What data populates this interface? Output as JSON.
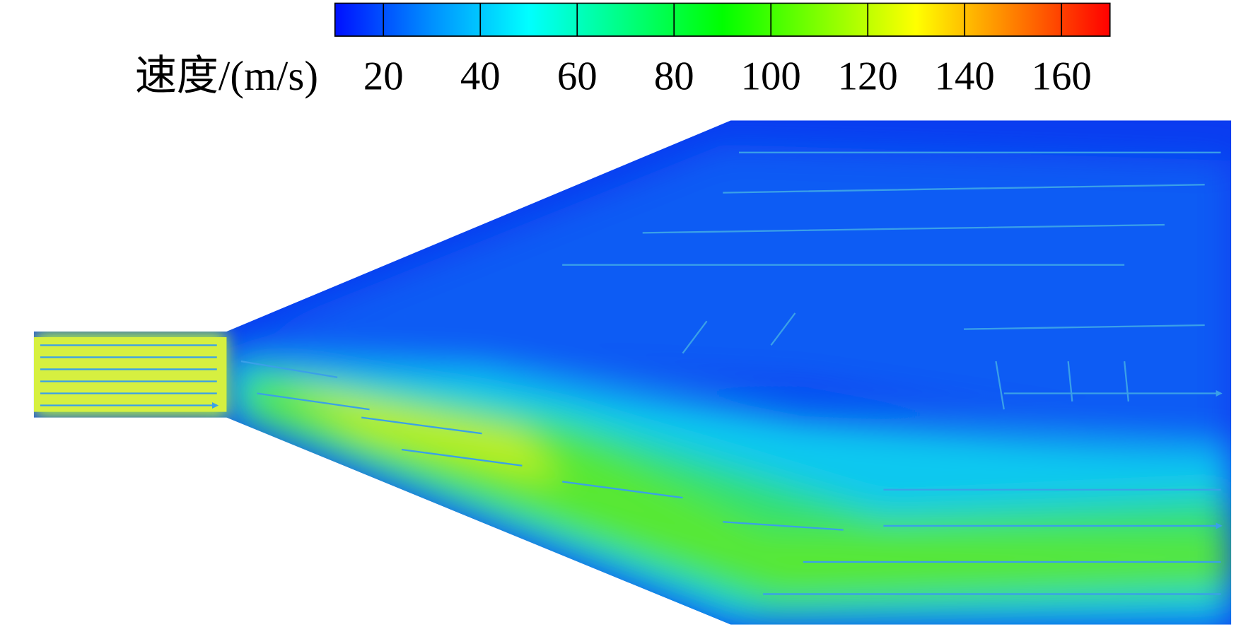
{
  "chart_data": {
    "type": "colorbar",
    "colorbar_label": "速度/(m/s)",
    "clim": [
      10,
      170
    ],
    "ticks": [
      20,
      40,
      60,
      80,
      100,
      120,
      140,
      160
    ],
    "colormap": [
      "#0010ff",
      "#0090ff",
      "#00ffff",
      "#00ff80",
      "#00ff00",
      "#80ff00",
      "#ffff00",
      "#ff8000",
      "#ff0000"
    ]
  }
}
